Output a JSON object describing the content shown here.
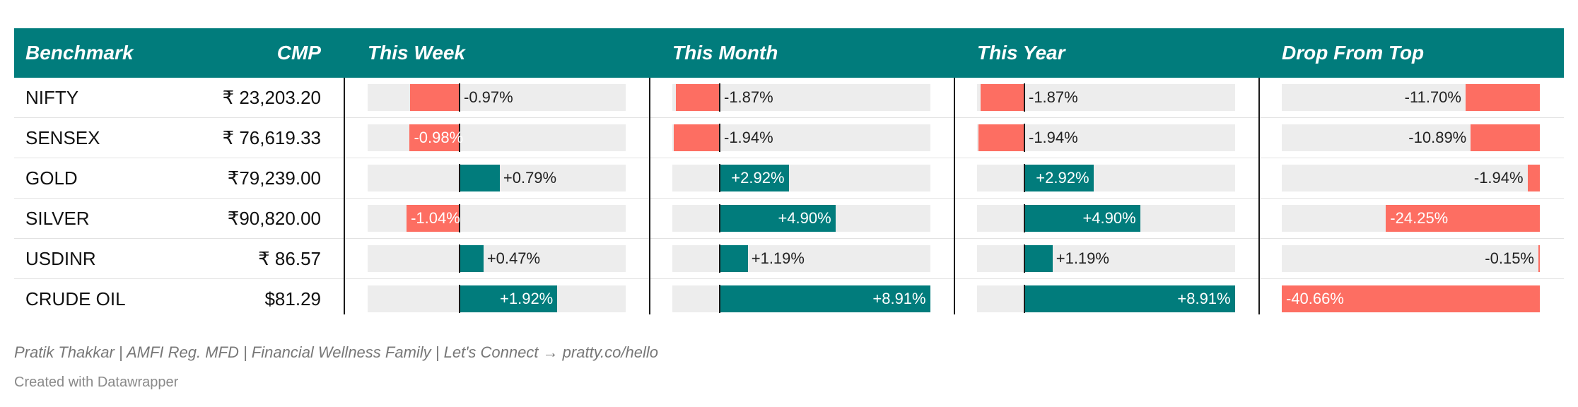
{
  "table": {
    "headers": {
      "benchmark": "Benchmark",
      "cmp": "CMP",
      "week": "This Week",
      "month": "This Month",
      "year": "This Year",
      "drop": "Drop From Top"
    }
  },
  "chart_data": {
    "type": "table",
    "columns": [
      "Benchmark",
      "CMP",
      "This Week",
      "This Month",
      "This Year",
      "Drop From Top"
    ],
    "rows": [
      {
        "name": "NIFTY",
        "cmp": "₹ 23,203.20",
        "week": -0.97,
        "month": -1.87,
        "year": -1.87,
        "drop": -11.7,
        "week_label": "-0.97%",
        "month_label": "-1.87%",
        "year_label": "-1.87%",
        "drop_label": "-11.70%"
      },
      {
        "name": "SENSEX",
        "cmp": "₹ 76,619.33",
        "week": -0.98,
        "month": -1.94,
        "year": -1.94,
        "drop": -10.89,
        "week_label": "-0.98%",
        "month_label": "-1.94%",
        "year_label": "-1.94%",
        "drop_label": "-10.89%"
      },
      {
        "name": "GOLD",
        "cmp": "₹79,239.00",
        "week": 0.79,
        "month": 2.92,
        "year": 2.92,
        "drop": -1.94,
        "week_label": "+0.79%",
        "month_label": "+2.92%",
        "year_label": "+2.92%",
        "drop_label": "-1.94%"
      },
      {
        "name": "SILVER",
        "cmp": "₹90,820.00",
        "week": -1.04,
        "month": 4.9,
        "year": 4.9,
        "drop": -24.25,
        "week_label": "-1.04%",
        "month_label": "+4.90%",
        "year_label": "+4.90%",
        "drop_label": "-24.25%"
      },
      {
        "name": "USDINR",
        "cmp": "₹ 86.57",
        "week": 0.47,
        "month": 1.19,
        "year": 1.19,
        "drop": -0.15,
        "week_label": "+0.47%",
        "month_label": "+1.19%",
        "year_label": "+1.19%",
        "drop_label": "-0.15%"
      },
      {
        "name": "CRUDE OIL",
        "cmp": "$81.29",
        "week": 1.92,
        "month": 8.91,
        "year": 8.91,
        "drop": -40.66,
        "week_label": "+1.92%",
        "month_label": "+8.91%",
        "year_label": "+8.91%",
        "drop_label": "-40.66%"
      }
    ],
    "colors": {
      "header_bg": "#017c7c",
      "positive": "#017c7c",
      "negative": "#fd6e62",
      "track": "#ededed"
    }
  },
  "footer": {
    "credit": "Pratik Thakkar | AMFI Reg. MFD | Financial Wellness Family | Let's Connect → pratty.co/hello",
    "made_with": "Created with Datawrapper"
  }
}
